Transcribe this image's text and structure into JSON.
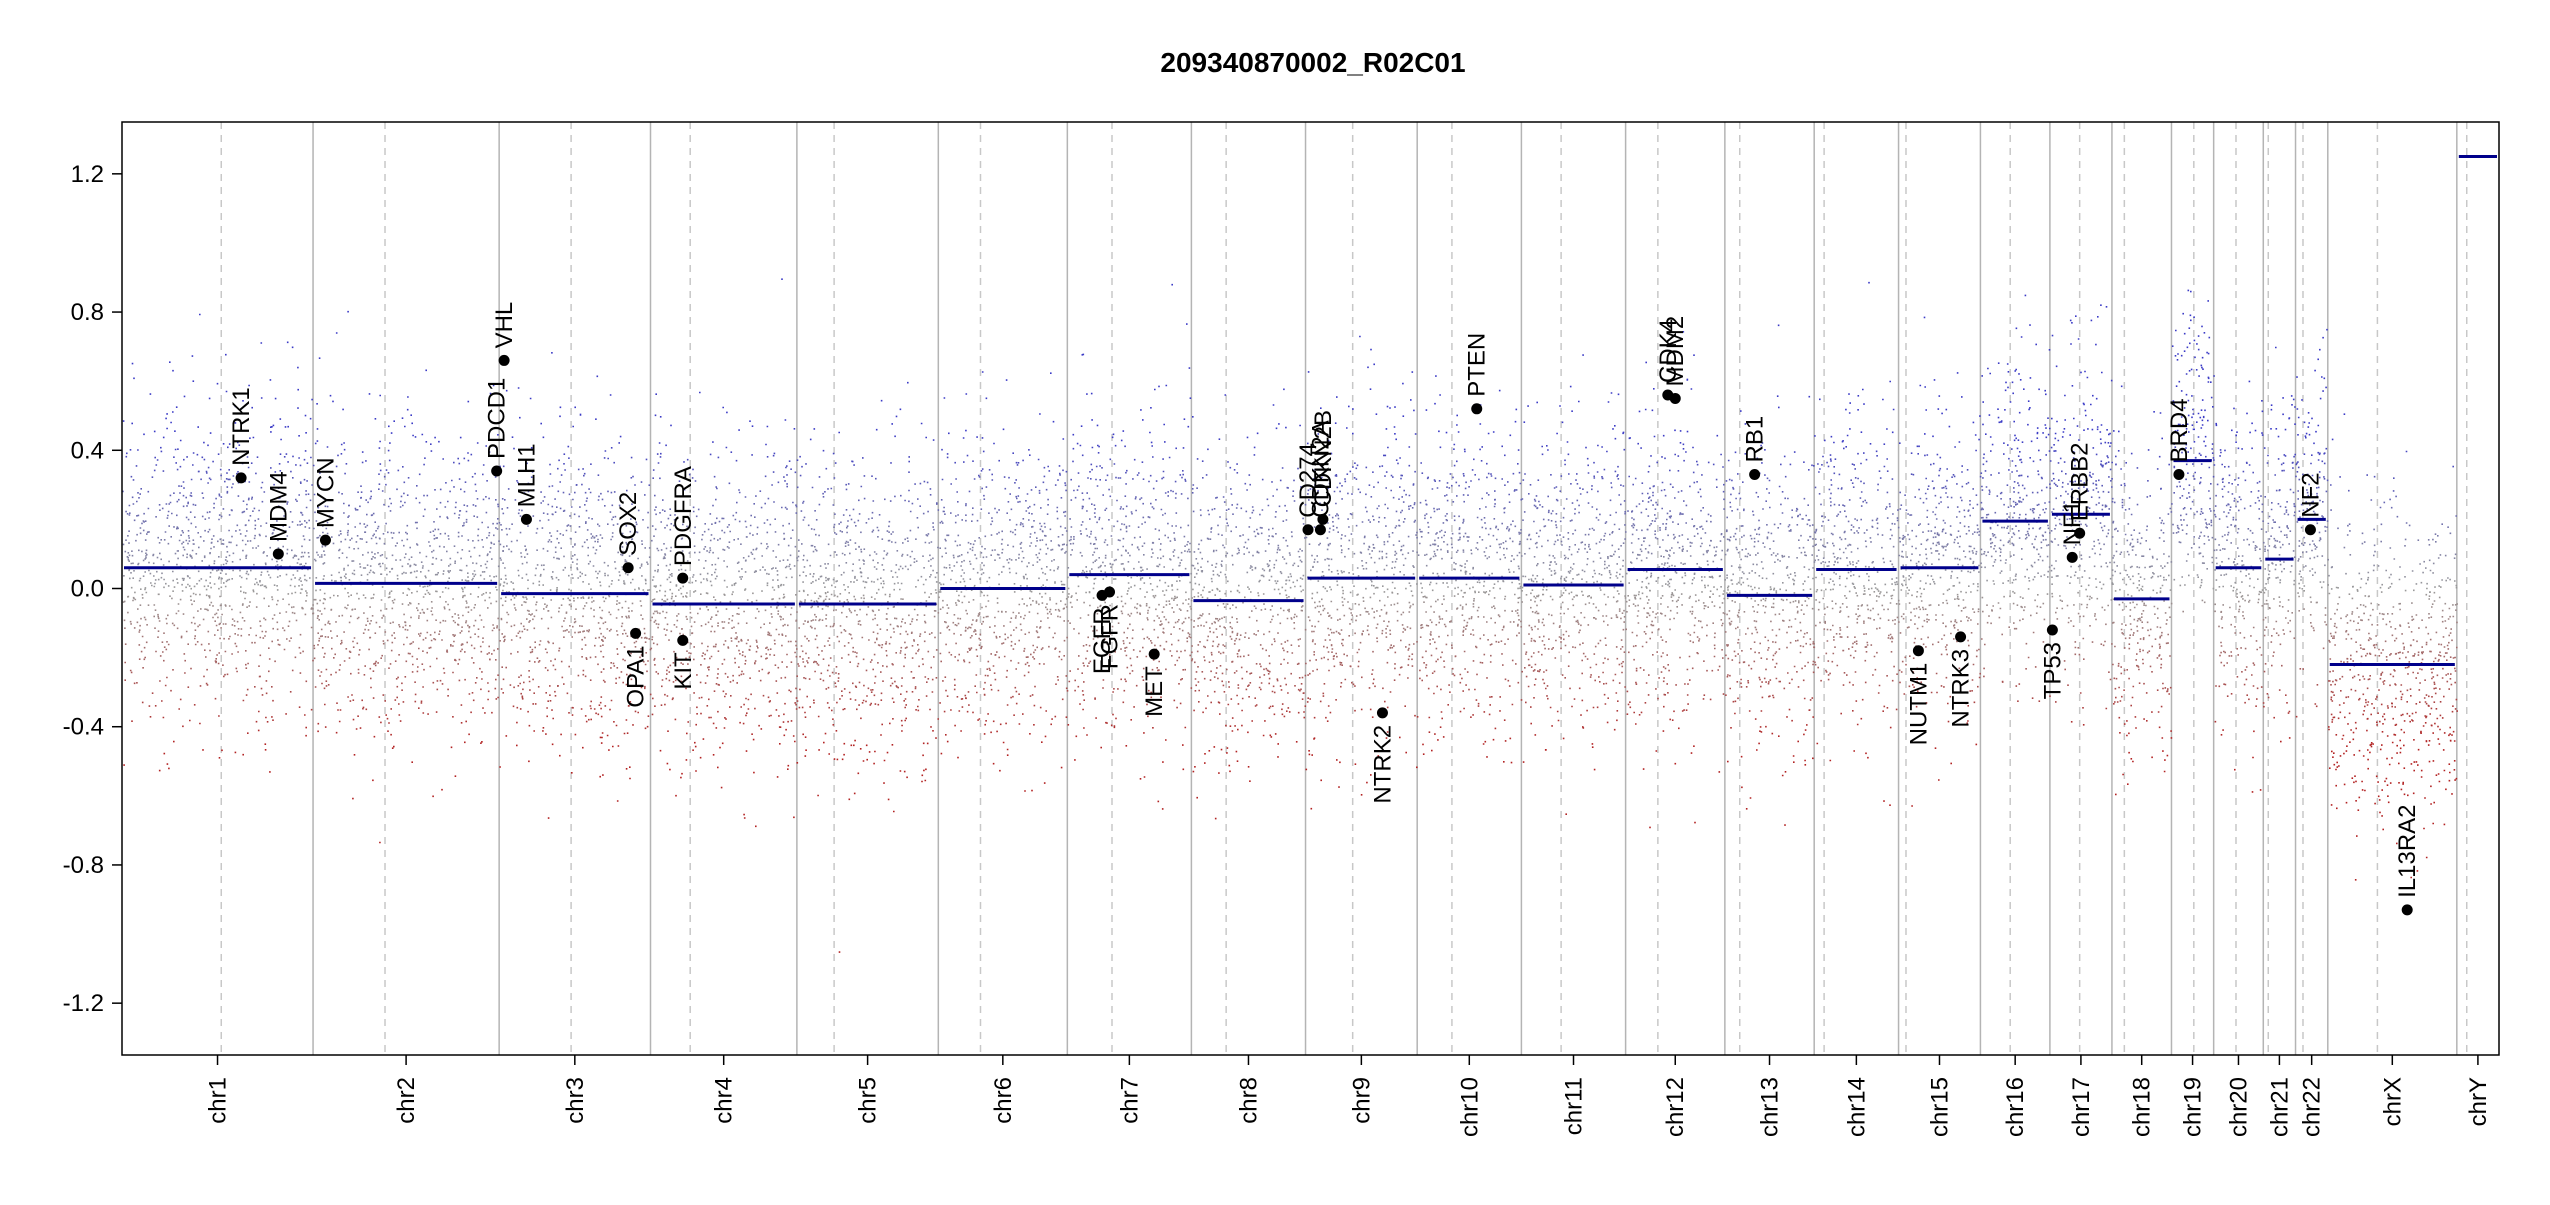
{
  "chart_data": {
    "type": "scatter",
    "title": "209340870002_R02C01",
    "xlabel": "",
    "ylabel": "",
    "ylim": [
      -1.35,
      1.35
    ],
    "y_ticks": [
      "-1.2",
      "-0.8",
      "-0.4",
      "0.0",
      "0.4",
      "0.8",
      "1.2"
    ],
    "grid": "none",
    "legend": "none",
    "colors": {
      "segment": "#00008b",
      "gain_points": "#3b3bc6",
      "loss_points": "#b22222",
      "neutral_points": "#9a9a9a",
      "chrom_boundary": "#b4b4b4",
      "centromere": "#c8c8c8",
      "gene_marker": "#000000"
    },
    "chromosomes": [
      {
        "name": "chr1",
        "start": 0.0,
        "end": 7.7,
        "centromere": 4.0,
        "segment": 0.06
      },
      {
        "name": "chr2",
        "start": 7.7,
        "end": 15.2,
        "centromere": 10.6,
        "segment": 0.015
      },
      {
        "name": "chr3",
        "start": 15.2,
        "end": 21.3,
        "centromere": 18.1,
        "segment": -0.015
      },
      {
        "name": "chr4",
        "start": 21.3,
        "end": 27.2,
        "centromere": 22.9,
        "segment": -0.045
      },
      {
        "name": "chr5",
        "start": 27.2,
        "end": 32.9,
        "centromere": 28.7,
        "segment": -0.045
      },
      {
        "name": "chr6",
        "start": 32.9,
        "end": 38.1,
        "centromere": 34.6,
        "segment": 0.0
      },
      {
        "name": "chr7",
        "start": 38.1,
        "end": 43.1,
        "centromere": 39.9,
        "segment": 0.04
      },
      {
        "name": "chr8",
        "start": 43.1,
        "end": 47.7,
        "centromere": 44.5,
        "segment": -0.035
      },
      {
        "name": "chr9",
        "start": 47.7,
        "end": 52.2,
        "centromere": 49.6,
        "segment": 0.03
      },
      {
        "name": "chr10",
        "start": 52.2,
        "end": 56.4,
        "centromere": 53.6,
        "segment": 0.03
      },
      {
        "name": "chr11",
        "start": 56.4,
        "end": 60.6,
        "centromere": 58.0,
        "segment": 0.01
      },
      {
        "name": "chr12",
        "start": 60.6,
        "end": 64.6,
        "centromere": 61.9,
        "segment": 0.055
      },
      {
        "name": "chr13",
        "start": 64.6,
        "end": 68.2,
        "centromere": 65.2,
        "segment": -0.02
      },
      {
        "name": "chr14",
        "start": 68.2,
        "end": 71.6,
        "centromere": 68.6,
        "segment": 0.055
      },
      {
        "name": "chr15",
        "start": 71.6,
        "end": 74.9,
        "centromere": 71.9,
        "segment": 0.06
      },
      {
        "name": "chr16",
        "start": 74.9,
        "end": 77.7,
        "centromere": 76.1,
        "segment": 0.195
      },
      {
        "name": "chr17",
        "start": 77.7,
        "end": 80.2,
        "centromere": 78.9,
        "segment": 0.215
      },
      {
        "name": "chr18",
        "start": 80.2,
        "end": 82.6,
        "centromere": 80.7,
        "segment": -0.03
      },
      {
        "name": "chr19",
        "start": 82.6,
        "end": 84.3,
        "centromere": 83.5,
        "segment": 0.37
      },
      {
        "name": "chr20",
        "start": 84.3,
        "end": 86.3,
        "centromere": 85.2,
        "segment": 0.06
      },
      {
        "name": "chr21",
        "start": 86.3,
        "end": 87.6,
        "centromere": 86.5,
        "segment": 0.085
      },
      {
        "name": "chr22",
        "start": 87.6,
        "end": 88.9,
        "centromere": 87.9,
        "segment": 0.2
      },
      {
        "name": "chrX",
        "start": 88.9,
        "end": 94.1,
        "centromere": 90.9,
        "segment": -0.22
      },
      {
        "name": "chrY",
        "start": 94.1,
        "end": 95.8,
        "centromere": 94.5,
        "segment": 1.25
      }
    ],
    "genes": [
      {
        "name": "NTRK1",
        "x": 4.8,
        "y": 0.32,
        "label": "above"
      },
      {
        "name": "MDM4",
        "x": 6.3,
        "y": 0.1,
        "label": "above"
      },
      {
        "name": "MYCN",
        "x": 8.2,
        "y": 0.14,
        "label": "above"
      },
      {
        "name": "PDCD1",
        "x": 15.1,
        "y": 0.34,
        "label": "above"
      },
      {
        "name": "VHL",
        "x": 15.4,
        "y": 0.66,
        "label": "above"
      },
      {
        "name": "MLH1",
        "x": 16.3,
        "y": 0.2,
        "label": "above"
      },
      {
        "name": "SOX2",
        "x": 20.4,
        "y": 0.06,
        "label": "above"
      },
      {
        "name": "OPA1",
        "x": 20.7,
        "y": -0.13,
        "label": "below"
      },
      {
        "name": "PDGFRA",
        "x": 22.6,
        "y": 0.03,
        "label": "above"
      },
      {
        "name": "KIT",
        "x": 22.6,
        "y": -0.15,
        "label": "below"
      },
      {
        "name": "EGFR",
        "x": 39.5,
        "y": -0.02,
        "label": "below"
      },
      {
        "name": "FGFR",
        "x": 39.8,
        "y": -0.01,
        "label": "below"
      },
      {
        "name": "MET",
        "x": 41.6,
        "y": -0.19,
        "label": "below"
      },
      {
        "name": "CD274",
        "x": 47.8,
        "y": 0.17,
        "label": "above"
      },
      {
        "name": "CDKN2A",
        "x": 48.3,
        "y": 0.17,
        "label": "above"
      },
      {
        "name": "CDKN2B",
        "x": 48.4,
        "y": 0.2,
        "label": "above"
      },
      {
        "name": "NTRK2",
        "x": 50.8,
        "y": -0.36,
        "label": "below"
      },
      {
        "name": "PTEN",
        "x": 54.6,
        "y": 0.52,
        "label": "above"
      },
      {
        "name": "CDK4",
        "x": 62.3,
        "y": 0.56,
        "label": "above"
      },
      {
        "name": "MDM2",
        "x": 62.6,
        "y": 0.55,
        "label": "above"
      },
      {
        "name": "RB1",
        "x": 65.8,
        "y": 0.33,
        "label": "above"
      },
      {
        "name": "NUTM1",
        "x": 72.4,
        "y": -0.18,
        "label": "below"
      },
      {
        "name": "NTRK3",
        "x": 74.1,
        "y": -0.14,
        "label": "below"
      },
      {
        "name": "TP53",
        "x": 77.8,
        "y": -0.12,
        "label": "below"
      },
      {
        "name": "NF1",
        "x": 78.6,
        "y": 0.09,
        "label": "above"
      },
      {
        "name": "ERBB2",
        "x": 78.9,
        "y": 0.16,
        "label": "above"
      },
      {
        "name": "BRD4",
        "x": 82.9,
        "y": 0.33,
        "label": "above"
      },
      {
        "name": "NF2",
        "x": 88.2,
        "y": 0.17,
        "label": "above"
      },
      {
        "name": "IL13RA2",
        "x": 92.1,
        "y": -0.93,
        "label": "above"
      }
    ]
  }
}
